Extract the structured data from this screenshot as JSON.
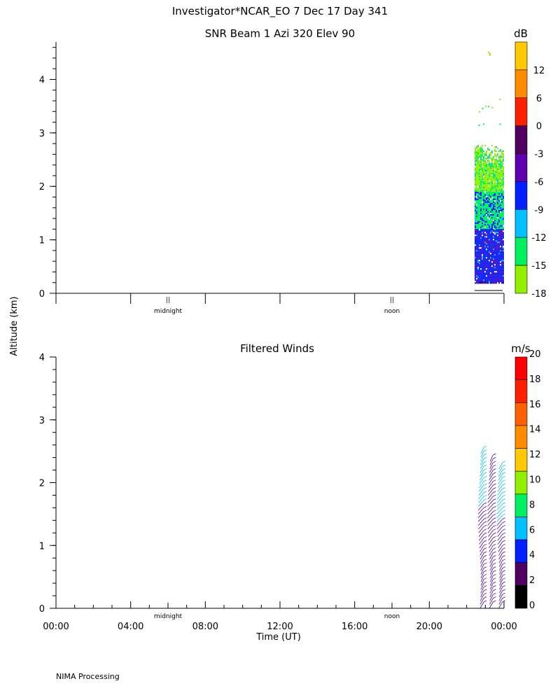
{
  "header": {
    "line1": "Investigator*NCAR_EO   7 Dec 17 Day 341"
  },
  "shared": {
    "ylabel": "Altitude (km)",
    "xlabel": "Time (UT)",
    "midnight_marker": "midnight",
    "noon_marker": "noon",
    "day_marker_glyph": "||"
  },
  "footer": "NIMA Processing",
  "chart_data": [
    {
      "type": "heatmap",
      "title": "SNR Beam 1 Azi 320 Elev 90",
      "ylim": [
        0,
        4.7
      ],
      "yticks": [
        "0",
        "1",
        "2",
        "3",
        "4"
      ],
      "xlim_hours": [
        0,
        24
      ],
      "colorbar": {
        "unit": "dB",
        "ticks": [
          "12",
          "6",
          "0",
          "-3",
          "-6",
          "-9",
          "-12",
          "-15",
          "-18"
        ],
        "colors": [
          "#ffc800",
          "#ff8c00",
          "#ff2000",
          "#500060",
          "#6000b0",
          "#0020ff",
          "#00c0ff",
          "#00f060",
          "#90f000"
        ]
      },
      "data_region": {
        "time_start": "22:30",
        "time_end": "24:00",
        "alt_min_km": 0.2,
        "alt_max_km": 2.8,
        "layers": [
          {
            "alt_range": [
              1.9,
              2.8
            ],
            "dominant": "#90f000",
            "secondary": "#00f060"
          },
          {
            "alt_range": [
              1.2,
              1.9
            ],
            "dominant": "#00f060",
            "secondary": "#0020ff"
          },
          {
            "alt_range": [
              0.2,
              1.2
            ],
            "dominant": "#0020ff",
            "secondary": "#6000b0"
          }
        ],
        "sparse_points_alt_km": [
          3.1,
          3.4,
          3.5,
          4.4
        ]
      },
      "grid": false
    },
    {
      "type": "scatter",
      "title": "Filtered Winds",
      "ylim": [
        0,
        4
      ],
      "yticks": [
        "0",
        "1",
        "2",
        "3",
        "4"
      ],
      "xlim_hours": [
        0,
        24
      ],
      "xticks": [
        "00:00",
        "04:00",
        "08:00",
        "12:00",
        "16:00",
        "20:00",
        "00:00"
      ],
      "colorbar": {
        "unit": "m/s",
        "ticks": [
          "0",
          "2",
          "4",
          "6",
          "8",
          "10",
          "12",
          "14",
          "16",
          "18",
          "20"
        ],
        "colors": [
          "#000000",
          "#500060",
          "#0020ff",
          "#00c0ff",
          "#00f060",
          "#90f000",
          "#ffc800",
          "#ff8c00",
          "#ff6000",
          "#ff2000",
          "#ff0000"
        ]
      },
      "wind_profiles": [
        {
          "time": "22:55",
          "alt_range": [
            0.1,
            2.6
          ],
          "color": "#5000a0",
          "top_color": "#00c0ff"
        },
        {
          "time": "23:25",
          "alt_range": [
            0.1,
            2.45
          ],
          "color": "#5000a0",
          "top_color": "#5000a0"
        },
        {
          "time": "23:55",
          "alt_range": [
            0.1,
            2.35
          ],
          "color": "#5000a0",
          "top_color": "#00c0ff"
        }
      ],
      "grid": false
    }
  ]
}
